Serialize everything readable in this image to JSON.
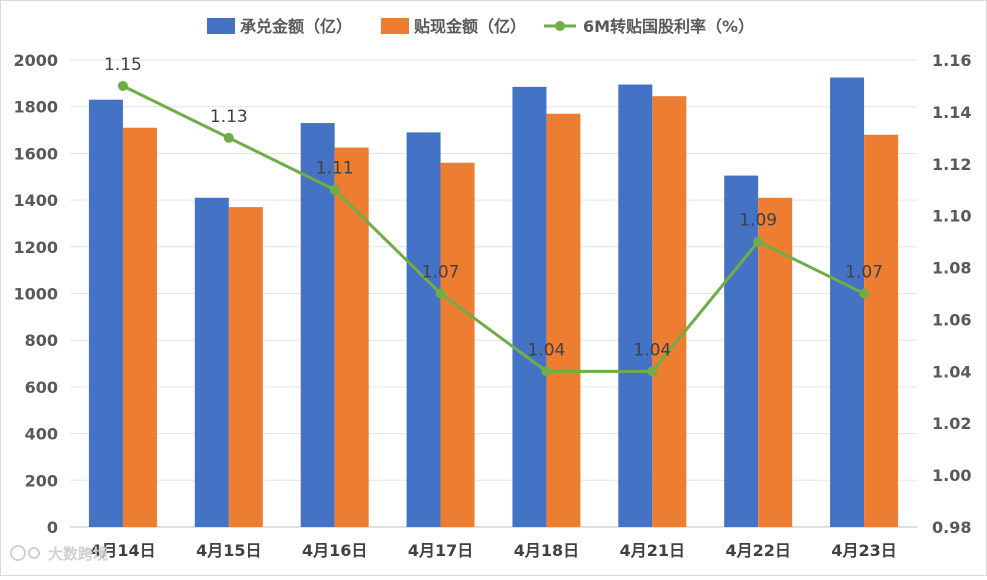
{
  "chart_data": {
    "type": "bar",
    "title": "",
    "categories": [
      "4月14日",
      "4月15日",
      "4月16日",
      "4月17日",
      "4月18日",
      "4月21日",
      "4月22日",
      "4月23日"
    ],
    "series": [
      {
        "name": "承兑金额（亿）",
        "type": "bar",
        "axis": "left",
        "color": "#4472C4",
        "values": [
          1830,
          1410,
          1730,
          1690,
          1885,
          1895,
          1505,
          1925
        ]
      },
      {
        "name": "贴现金额（亿）",
        "type": "bar",
        "axis": "left",
        "color": "#ED7D31",
        "values": [
          1710,
          1370,
          1625,
          1560,
          1770,
          1845,
          1410,
          1680
        ]
      },
      {
        "name": "6M转贴国股利率（%）",
        "type": "line",
        "axis": "right",
        "color": "#70AD47",
        "values": [
          1.15,
          1.13,
          1.11,
          1.07,
          1.04,
          1.04,
          1.09,
          1.07
        ],
        "labels": [
          "1.15",
          "1.13",
          "1.11",
          "1.07",
          "1.04",
          "1.04",
          "1.09",
          "1.07"
        ]
      }
    ],
    "y_left": {
      "min": 0,
      "max": 2000,
      "step": 200,
      "ticks": [
        "0",
        "200",
        "400",
        "600",
        "800",
        "1000",
        "1200",
        "1400",
        "1600",
        "1800",
        "2000"
      ]
    },
    "y_right": {
      "min": 0.98,
      "max": 1.16,
      "step": 0.02,
      "ticks": [
        "0.98",
        "1.00",
        "1.02",
        "1.04",
        "1.06",
        "1.08",
        "1.10",
        "1.12",
        "1.14",
        "1.16"
      ]
    },
    "grid": true,
    "legend_position": "top"
  },
  "watermark": {
    "text": "大数跨境"
  }
}
